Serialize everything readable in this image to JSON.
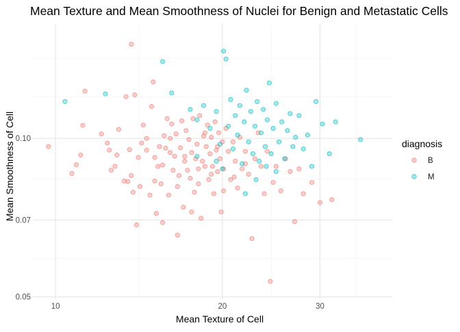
{
  "chart_data": {
    "type": "scatter",
    "title": "Mean Texture and Mean Smoothness of Nuclei for Benign and Metastatic Cells",
    "xlabel": "Mean Texture of Cell",
    "ylabel": "Mean Smoothness of Cell",
    "x_scale": "log",
    "y_scale": "log",
    "xlim": [
      9.1,
      40.5
    ],
    "ylim": [
      0.0495,
      0.165
    ],
    "x_ticks": [
      10,
      20,
      30
    ],
    "x_tick_labels": [
      "10",
      "20",
      "30"
    ],
    "y_ticks": [
      0.05,
      0.07,
      0.1
    ],
    "y_tick_labels": [
      "0.05",
      "0.07",
      "0.10"
    ],
    "grid": true,
    "legend": {
      "title": "diagnosis",
      "position": "right",
      "entries": [
        {
          "label": "B",
          "color": "#F8766D"
        },
        {
          "label": "M",
          "color": "#00BFC4"
        }
      ]
    },
    "series": [
      {
        "name": "B",
        "color": "#F8766D",
        "points": [
          [
            9.71,
            0.0965
          ],
          [
            10.7,
            0.0858
          ],
          [
            10.9,
            0.0891
          ],
          [
            11.2,
            0.1059
          ],
          [
            11.1,
            0.093
          ],
          [
            11.3,
            0.123
          ],
          [
            12.1,
            0.102
          ],
          [
            12.4,
            0.098
          ],
          [
            12.5,
            0.095
          ],
          [
            12.6,
            0.087
          ],
          [
            12.8,
            0.0885
          ],
          [
            12.9,
            0.093
          ],
          [
            13.0,
            0.104
          ],
          [
            13.3,
            0.083
          ],
          [
            13.5,
            0.0828
          ],
          [
            13.4,
            0.12
          ],
          [
            13.6,
            0.0952
          ],
          [
            13.7,
            0.151
          ],
          [
            13.8,
            0.079
          ],
          [
            13.9,
            0.121
          ],
          [
            14.0,
            0.0685
          ],
          [
            14.2,
            0.081
          ],
          [
            14.3,
            0.098
          ],
          [
            14.4,
            0.106
          ],
          [
            14.6,
            0.1
          ],
          [
            14.8,
            0.078
          ],
          [
            14.9,
            0.115
          ],
          [
            15.0,
            0.128
          ],
          [
            15.1,
            0.092
          ],
          [
            15.2,
            0.072
          ],
          [
            15.3,
            0.0885
          ],
          [
            15.4,
            0.0965
          ],
          [
            15.5,
            0.082
          ],
          [
            15.6,
            0.0692
          ],
          [
            15.7,
            0.1012
          ],
          [
            15.8,
            0.0958
          ],
          [
            15.9,
            0.109
          ],
          [
            16.0,
            0.078
          ],
          [
            16.1,
            0.094
          ],
          [
            16.2,
            0.1065
          ],
          [
            16.3,
            0.087
          ],
          [
            16.4,
            0.0925
          ],
          [
            16.5,
            0.102
          ],
          [
            16.6,
            0.0655
          ],
          [
            16.7,
            0.085
          ],
          [
            16.8,
            0.096
          ],
          [
            16.9,
            0.108
          ],
          [
            17.0,
            0.074
          ],
          [
            17.1,
            0.0905
          ],
          [
            17.2,
            0.1035
          ],
          [
            17.3,
            0.087
          ],
          [
            17.4,
            0.0995
          ],
          [
            17.5,
            0.084
          ],
          [
            17.6,
            0.094
          ],
          [
            17.7,
            0.109
          ],
          [
            17.8,
            0.079
          ],
          [
            17.9,
            0.0915
          ],
          [
            18.0,
            0.0975
          ],
          [
            18.1,
            0.082
          ],
          [
            18.2,
            0.1105
          ],
          [
            18.3,
            0.0705
          ],
          [
            18.4,
            0.0905
          ],
          [
            18.5,
            0.101
          ],
          [
            18.6,
            0.0885
          ],
          [
            18.7,
            0.0965
          ],
          [
            18.8,
            0.106
          ],
          [
            18.9,
            0.0835
          ],
          [
            19.0,
            0.0935
          ],
          [
            19.1,
            0.1005
          ],
          [
            19.2,
            0.0885
          ],
          [
            19.3,
            0.0785
          ],
          [
            19.4,
            0.1075
          ],
          [
            19.5,
            0.095
          ],
          [
            19.6,
            0.0865
          ],
          [
            19.7,
            0.1025
          ],
          [
            19.8,
            0.0915
          ],
          [
            19.9,
            0.0725
          ],
          [
            20.0,
            0.0985
          ],
          [
            20.1,
            0.0875
          ],
          [
            20.3,
            0.1045
          ],
          [
            20.5,
            0.0945
          ],
          [
            20.7,
            0.0835
          ],
          [
            20.9,
            0.0985
          ],
          [
            21.1,
            0.0905
          ],
          [
            21.3,
            0.0805
          ],
          [
            21.5,
            0.1005
          ],
          [
            21.7,
            0.0875
          ],
          [
            22.0,
            0.0945
          ],
          [
            22.3,
            0.0855
          ],
          [
            22.6,
            0.0645
          ],
          [
            22.9,
            0.0915
          ],
          [
            23.2,
            0.1025
          ],
          [
            23.5,
            0.0885
          ],
          [
            23.8,
            0.0785
          ],
          [
            24.1,
            0.0945
          ],
          [
            24.4,
            0.0535
          ],
          [
            24.7,
            0.0825
          ],
          [
            25.0,
            0.0885
          ],
          [
            25.5,
            0.0795
          ],
          [
            26.0,
            0.0915
          ],
          [
            26.5,
            0.0865
          ],
          [
            27.0,
            0.0695
          ],
          [
            27.5,
            0.0875
          ],
          [
            28.0,
            0.0785
          ],
          [
            29.0,
            0.0825
          ],
          [
            30.0,
            0.0755
          ],
          [
            31.5,
            0.0765
          ],
          [
            13.7,
            0.085
          ],
          [
            14.1,
            0.092
          ],
          [
            14.6,
            0.095
          ],
          [
            15.1,
            0.083
          ],
          [
            15.6,
            0.089
          ],
          [
            16.1,
            0.1
          ],
          [
            16.6,
            0.081
          ],
          [
            17.1,
            0.0925
          ],
          [
            17.6,
            0.0725
          ],
          [
            18.1,
            0.0875
          ],
          [
            18.6,
            0.1025
          ],
          [
            19.1,
            0.0855
          ],
          [
            19.6,
            0.0965
          ],
          [
            20.1,
            0.0795
          ],
          [
            21.0,
            0.0845
          ],
          [
            22.0,
            0.0895
          ]
        ]
      },
      {
        "name": "M",
        "color": "#00BFC4",
        "points": [
          [
            10.4,
            0.1175
          ],
          [
            12.3,
            0.1215
          ],
          [
            15.6,
            0.14
          ],
          [
            16.2,
            0.122
          ],
          [
            17.5,
            0.1135
          ],
          [
            18.0,
            0.1085
          ],
          [
            18.5,
            0.1155
          ],
          [
            19.0,
            0.1045
          ],
          [
            19.5,
            0.1125
          ],
          [
            19.8,
            0.0975
          ],
          [
            20.1,
            0.1465
          ],
          [
            20.3,
            0.1415
          ],
          [
            20.5,
            0.1055
          ],
          [
            20.7,
            0.1185
          ],
          [
            20.9,
            0.0955
          ],
          [
            21.1,
            0.1105
          ],
          [
            21.3,
            0.1015
          ],
          [
            21.5,
            0.1155
          ],
          [
            21.7,
            0.0895
          ],
          [
            21.9,
            0.1075
          ],
          [
            22.1,
            0.1235
          ],
          [
            22.3,
            0.0985
          ],
          [
            22.5,
            0.1125
          ],
          [
            22.7,
            0.0935
          ],
          [
            22.9,
            0.1055
          ],
          [
            23.1,
            0.1175
          ],
          [
            23.3,
            0.0905
          ],
          [
            23.5,
            0.1025
          ],
          [
            23.7,
            0.1135
          ],
          [
            23.9,
            0.0965
          ],
          [
            24.1,
            0.1085
          ],
          [
            24.3,
            0.1275
          ],
          [
            24.5,
            0.0935
          ],
          [
            24.7,
            0.1045
          ],
          [
            25.0,
            0.1165
          ],
          [
            25.3,
            0.0985
          ],
          [
            25.6,
            0.1075
          ],
          [
            25.9,
            0.0915
          ],
          [
            26.2,
            0.1035
          ],
          [
            26.5,
            0.1115
          ],
          [
            26.8,
            0.0965
          ],
          [
            27.1,
            0.1005
          ],
          [
            27.5,
            0.1105
          ],
          [
            28.0,
            0.0955
          ],
          [
            28.5,
            0.1015
          ],
          [
            29.0,
            0.0885
          ],
          [
            29.5,
            0.1175
          ],
          [
            30.3,
            0.1065
          ],
          [
            31.2,
            0.0935
          ],
          [
            32.0,
            0.1075
          ],
          [
            35.5,
            0.0995
          ],
          [
            22.0,
            0.0785
          ],
          [
            23.0,
            0.0835
          ],
          [
            24.0,
            0.0885
          ],
          [
            25.0,
            0.0865
          ],
          [
            19.5,
            0.0905
          ],
          [
            18.0,
            0.0925
          ],
          [
            20.0,
            0.0875
          ]
        ]
      }
    ]
  }
}
